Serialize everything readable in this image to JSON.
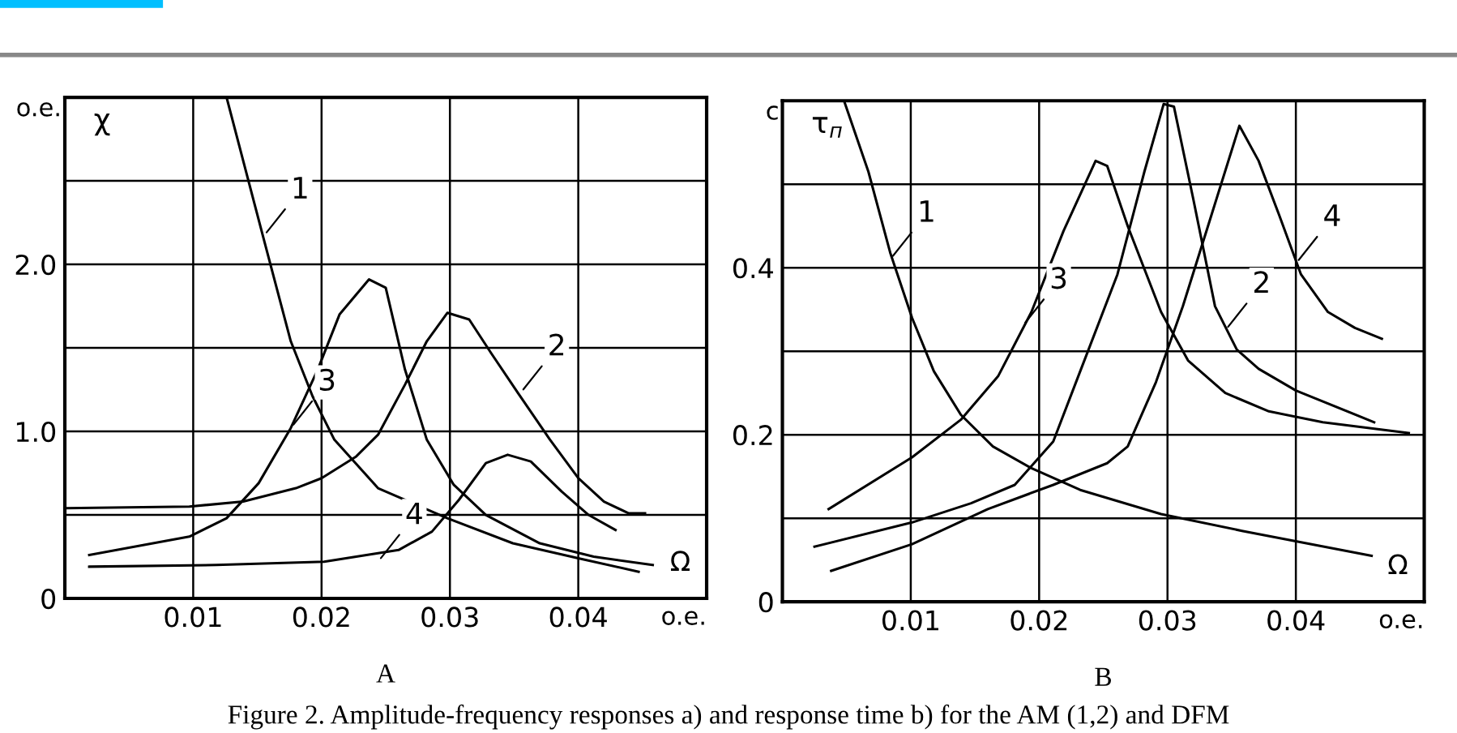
{
  "chart_data": [
    {
      "type": "line",
      "xlabel": "Ω",
      "ylabel": "χ",
      "xlim": [
        0,
        0.05
      ],
      "ylim": [
        0,
        3.0
      ],
      "xticks": [
        0.01,
        0.02,
        0.03,
        0.04
      ],
      "yticks": [
        0,
        {
          "value": 0.5,
          "label": null
        },
        {
          "value": 1.0,
          "label": "1.0"
        },
        {
          "value": 1.5,
          "label": null
        },
        {
          "value": 2.0,
          "label": "2.0"
        },
        {
          "value": 2.5,
          "label": null
        }
      ],
      "grid": true,
      "line_style": "solid",
      "series": [
        {
          "color": "#000000",
          "x": [
            0.0126,
            0.0155,
            0.0176,
            0.0193,
            0.021,
            0.0244,
            0.0298,
            0.0349,
            0.04,
            0.0447
          ],
          "values": [
            3.0,
            2.15,
            1.54,
            1.21,
            0.95,
            0.66,
            0.48,
            0.33,
            0.24,
            0.16
          ]
        },
        {
          "color": "#000000",
          "x": [
            0.0,
            0.0097,
            0.0139,
            0.018,
            0.02,
            0.0227,
            0.0244,
            0.0265,
            0.0282,
            0.0298,
            0.0315,
            0.0332,
            0.0353,
            0.0378,
            0.04,
            0.042,
            0.0439,
            0.0452
          ],
          "values": [
            0.54,
            0.55,
            0.58,
            0.66,
            0.72,
            0.85,
            0.98,
            1.28,
            1.54,
            1.71,
            1.67,
            1.47,
            1.23,
            0.95,
            0.72,
            0.58,
            0.51,
            0.51
          ]
        },
        {
          "color": "#000000",
          "x": [
            0.0019,
            0.0097,
            0.0126,
            0.0151,
            0.0176,
            0.0197,
            0.0214,
            0.0237,
            0.025,
            0.0265,
            0.0282,
            0.0303,
            0.0328,
            0.037,
            0.0412,
            0.0458
          ],
          "values": [
            0.26,
            0.37,
            0.48,
            0.69,
            1.02,
            1.37,
            1.7,
            1.91,
            1.86,
            1.37,
            0.95,
            0.68,
            0.5,
            0.33,
            0.25,
            0.2
          ]
        },
        {
          "color": "#000000",
          "x": [
            0.0019,
            0.0118,
            0.0202,
            0.026,
            0.0286,
            0.0307,
            0.0328,
            0.0345,
            0.0363,
            0.0387,
            0.0408,
            0.0429
          ],
          "values": [
            0.19,
            0.2,
            0.22,
            0.29,
            0.4,
            0.59,
            0.81,
            0.86,
            0.82,
            0.64,
            0.5,
            0.41
          ]
        }
      ],
      "annotations": [
        "o.e.",
        "o.e.",
        "A",
        "Figure 2. Amplitude-frequency responses a) and response time b) for the AM (1,2) and DFM",
        {
          "text": "1",
          "x": 0.0155,
          "y": 2.17
        },
        {
          "text": "2",
          "x": 0.0355,
          "y": 1.23
        },
        {
          "text": "3",
          "x": 0.0176,
          "y": 1.02
        },
        {
          "text": "4",
          "x": 0.0244,
          "y": 0.22
        }
      ]
    },
    {
      "type": "line",
      "xlabel": "Ω",
      "ylabel": "τ$_{п}$",
      "xlim": [
        0,
        0.05
      ],
      "ylim": [
        0,
        0.6
      ],
      "xticks": [
        0.01,
        0.02,
        0.03,
        0.04
      ],
      "yticks": [
        0,
        {
          "value": 0.1,
          "label": null
        },
        {
          "value": 0.2,
          "label": "0.2"
        },
        {
          "value": 0.3,
          "label": null
        },
        {
          "value": 0.4,
          "label": "0.4"
        },
        {
          "value": 0.5,
          "label": null
        }
      ],
      "grid": true,
      "line_style": "solid",
      "series": [
        {
          "color": "#000000",
          "x": [
            0.0048,
            0.0067,
            0.0084,
            0.0101,
            0.0118,
            0.0139,
            0.0164,
            0.0194,
            0.0232,
            0.0295,
            0.0358,
            0.0459
          ],
          "values": [
            0.6,
            0.515,
            0.418,
            0.34,
            0.276,
            0.224,
            0.186,
            0.16,
            0.134,
            0.105,
            0.085,
            0.055
          ]
        },
        {
          "color": "#000000",
          "x": [
            0.0025,
            0.0101,
            0.0147,
            0.0181,
            0.0211,
            0.0232,
            0.0261,
            0.0282,
            0.0297,
            0.0305,
            0.032,
            0.0337,
            0.0354,
            0.0371,
            0.04,
            0.0461
          ],
          "values": [
            0.066,
            0.095,
            0.118,
            0.14,
            0.192,
            0.276,
            0.392,
            0.515,
            0.596,
            0.593,
            0.483,
            0.354,
            0.302,
            0.279,
            0.253,
            0.215
          ]
        },
        {
          "color": "#000000",
          "x": [
            0.0036,
            0.0101,
            0.0139,
            0.0168,
            0.0194,
            0.0219,
            0.0244,
            0.0253,
            0.0269,
            0.0295,
            0.0316,
            0.0345,
            0.0379,
            0.0421,
            0.0488
          ],
          "values": [
            0.111,
            0.173,
            0.218,
            0.27,
            0.347,
            0.444,
            0.528,
            0.522,
            0.45,
            0.347,
            0.289,
            0.25,
            0.228,
            0.215,
            0.202
          ]
        },
        {
          "color": "#000000",
          "x": [
            0.0038,
            0.0101,
            0.016,
            0.0211,
            0.0253,
            0.0269,
            0.0291,
            0.0312,
            0.0333,
            0.0356,
            0.0371,
            0.0387,
            0.0404,
            0.0425,
            0.0446,
            0.0467
          ],
          "values": [
            0.037,
            0.069,
            0.111,
            0.14,
            0.166,
            0.186,
            0.263,
            0.354,
            0.457,
            0.57,
            0.528,
            0.463,
            0.392,
            0.347,
            0.328,
            0.315
          ]
        }
      ],
      "annotations": [
        "c",
        "o.e.",
        "B",
        {
          "text": "1",
          "x": 0.0084,
          "y": 0.41
        },
        {
          "text": "3",
          "x": 0.0187,
          "y": 0.33
        },
        {
          "text": "2",
          "x": 0.0345,
          "y": 0.325
        },
        {
          "text": "4",
          "x": 0.04,
          "y": 0.405
        }
      ]
    }
  ]
}
